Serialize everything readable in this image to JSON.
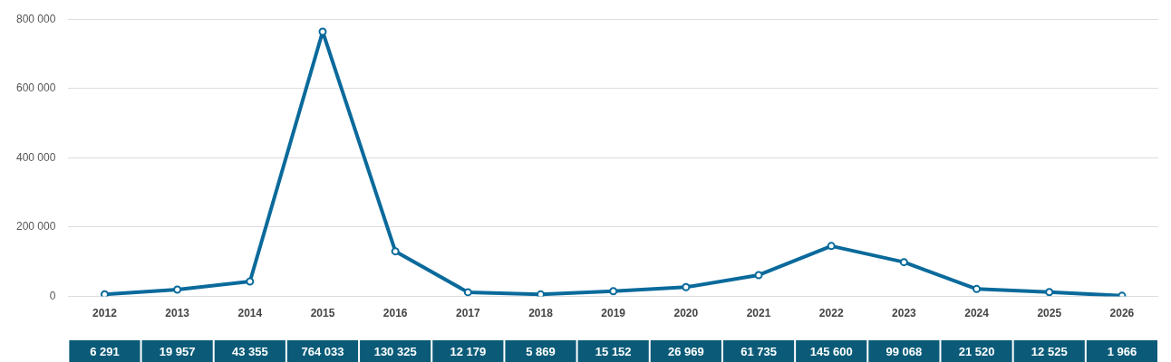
{
  "chart_data": {
    "type": "line",
    "categories": [
      "2012",
      "2013",
      "2014",
      "2015",
      "2016",
      "2017",
      "2018",
      "2019",
      "2020",
      "2021",
      "2022",
      "2023",
      "2024",
      "2025",
      "2026"
    ],
    "series": [
      {
        "color": "#0a6a9b",
        "values": [
          6291,
          19957,
          43355,
          764033,
          130325,
          12179,
          5869,
          15152,
          26969,
          61735,
          145600,
          99068,
          21520,
          12525,
          1966
        ],
        "value_labels": [
          "6 291",
          "19 957",
          "43 355",
          "764 033",
          "130 325",
          "12 179",
          "5 869",
          "15 152",
          "26 969",
          "61 735",
          "145 600",
          "99 068",
          "21 520",
          "12 525",
          "1 966"
        ]
      }
    ],
    "ylim": [
      0,
      800000
    ],
    "yticks": [
      {
        "value": 0,
        "label": "0"
      },
      {
        "value": 200000,
        "label": "200 000"
      },
      {
        "value": 400000,
        "label": "400 000"
      },
      {
        "value": 600000,
        "label": "600 000"
      },
      {
        "value": 800000,
        "label": "800 000"
      }
    ],
    "grid": "y",
    "legend": false,
    "marker": "circle",
    "line_style": "solid"
  }
}
